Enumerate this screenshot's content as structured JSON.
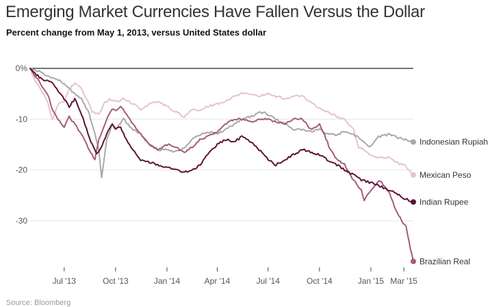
{
  "title": "Emerging Market Currencies Have Fallen Versus the Dollar",
  "subtitle": "Percent change from May 1, 2013, versus United States dollar",
  "source": "Source: Bloomberg",
  "chart_data": {
    "type": "line",
    "title": "Emerging Market Currencies Have Fallen Versus the Dollar",
    "subtitle": "Percent change from May 1, 2013, versus United States dollar",
    "xlabel": "",
    "ylabel": "",
    "x_range": [
      "2013-05-01",
      "2015-03-18"
    ],
    "ylim": [
      -38.5,
      1
    ],
    "y_ticks": [
      {
        "value": 0,
        "label": "0%"
      },
      {
        "value": -10,
        "label": "-10"
      },
      {
        "value": -20,
        "label": "-20"
      },
      {
        "value": -30,
        "label": "-30"
      }
    ],
    "x_ticks": [
      {
        "date": "2013-07-01",
        "label": "Jul '13"
      },
      {
        "date": "2013-10-01",
        "label": "Oct '13"
      },
      {
        "date": "2014-01-01",
        "label": "Jan '14"
      },
      {
        "date": "2014-04-01",
        "label": "Apr '14"
      },
      {
        "date": "2014-07-01",
        "label": "Jul '14"
      },
      {
        "date": "2014-10-01",
        "label": "Oct '14"
      },
      {
        "date": "2015-01-01",
        "label": "Jan '15"
      },
      {
        "date": "2015-03-01",
        "label": "Mar '15"
      }
    ],
    "grid": true,
    "legend": "direct labels at line ends",
    "series": [
      {
        "name": "Mexican Peso",
        "color": "#e5c3cd",
        "points": [
          [
            "2013-05-01",
            0
          ],
          [
            "2013-05-10",
            -2.5
          ],
          [
            "2013-05-20",
            -4
          ],
          [
            "2013-06-01",
            -6.5
          ],
          [
            "2013-06-10",
            -10
          ],
          [
            "2013-06-20",
            -7
          ],
          [
            "2013-07-01",
            -6.5
          ],
          [
            "2013-07-10",
            -4
          ],
          [
            "2013-07-20",
            -3
          ],
          [
            "2013-08-01",
            -4
          ],
          [
            "2013-08-10",
            -6
          ],
          [
            "2013-08-20",
            -8.5
          ],
          [
            "2013-09-01",
            -9
          ],
          [
            "2013-09-10",
            -7
          ],
          [
            "2013-09-20",
            -6
          ],
          [
            "2013-10-01",
            -6.5
          ],
          [
            "2013-10-15",
            -6
          ],
          [
            "2013-11-01",
            -7
          ],
          [
            "2013-11-15",
            -8
          ],
          [
            "2013-12-01",
            -7
          ],
          [
            "2013-12-15",
            -6.5
          ],
          [
            "2014-01-01",
            -7.5
          ],
          [
            "2014-01-15",
            -8.5
          ],
          [
            "2014-02-01",
            -9.5
          ],
          [
            "2014-02-15",
            -8
          ],
          [
            "2014-03-01",
            -8.5
          ],
          [
            "2014-03-15",
            -7.5
          ],
          [
            "2014-04-01",
            -7
          ],
          [
            "2014-04-15",
            -6.5
          ],
          [
            "2014-05-01",
            -5.5
          ],
          [
            "2014-05-15",
            -5
          ],
          [
            "2014-06-01",
            -5
          ],
          [
            "2014-06-15",
            -5.5
          ],
          [
            "2014-07-01",
            -5
          ],
          [
            "2014-07-15",
            -5.5
          ],
          [
            "2014-08-01",
            -6
          ],
          [
            "2014-08-15",
            -5.5
          ],
          [
            "2014-09-01",
            -5.5
          ],
          [
            "2014-09-15",
            -6.5
          ],
          [
            "2014-10-01",
            -8
          ],
          [
            "2014-10-15",
            -8.5
          ],
          [
            "2014-11-01",
            -9.5
          ],
          [
            "2014-11-15",
            -10
          ],
          [
            "2014-12-01",
            -12
          ],
          [
            "2014-12-10",
            -15.5
          ],
          [
            "2014-12-20",
            -16
          ],
          [
            "2015-01-01",
            -17
          ],
          [
            "2015-01-15",
            -17.5
          ],
          [
            "2015-02-01",
            -17.5
          ],
          [
            "2015-02-15",
            -18.5
          ],
          [
            "2015-03-01",
            -19
          ],
          [
            "2015-03-10",
            -20
          ],
          [
            "2015-03-18",
            -21
          ]
        ]
      },
      {
        "name": "Indonesian Rupiah",
        "color": "#a8a8a8",
        "points": [
          [
            "2013-05-01",
            0
          ],
          [
            "2013-05-15",
            -0.5
          ],
          [
            "2013-06-01",
            -1.5
          ],
          [
            "2013-06-15",
            -2
          ],
          [
            "2013-07-01",
            -3
          ],
          [
            "2013-07-15",
            -4.5
          ],
          [
            "2013-08-01",
            -6
          ],
          [
            "2013-08-15",
            -9
          ],
          [
            "2013-08-25",
            -13
          ],
          [
            "2013-09-01",
            -16
          ],
          [
            "2013-09-06",
            -21.5
          ],
          [
            "2013-09-15",
            -14
          ],
          [
            "2013-09-25",
            -11
          ],
          [
            "2013-10-01",
            -12
          ],
          [
            "2013-10-15",
            -10
          ],
          [
            "2013-11-01",
            -12
          ],
          [
            "2013-11-15",
            -13
          ],
          [
            "2013-12-01",
            -15
          ],
          [
            "2013-12-15",
            -16
          ],
          [
            "2014-01-01",
            -16
          ],
          [
            "2014-01-15",
            -16.5
          ],
          [
            "2014-02-01",
            -15.5
          ],
          [
            "2014-02-15",
            -14
          ],
          [
            "2014-03-01",
            -13
          ],
          [
            "2014-03-15",
            -12.5
          ],
          [
            "2014-04-01",
            -13
          ],
          [
            "2014-04-15",
            -12
          ],
          [
            "2014-05-01",
            -11
          ],
          [
            "2014-05-15",
            -10
          ],
          [
            "2014-06-01",
            -9.5
          ],
          [
            "2014-06-15",
            -8.5
          ],
          [
            "2014-07-01",
            -9
          ],
          [
            "2014-07-15",
            -10
          ],
          [
            "2014-08-01",
            -11
          ],
          [
            "2014-08-15",
            -12
          ],
          [
            "2014-09-01",
            -12
          ],
          [
            "2014-09-15",
            -12.5
          ],
          [
            "2014-10-01",
            -12
          ],
          [
            "2014-10-15",
            -13
          ],
          [
            "2014-11-01",
            -13
          ],
          [
            "2014-11-15",
            -12.5
          ],
          [
            "2014-12-01",
            -13
          ],
          [
            "2014-12-15",
            -14
          ],
          [
            "2015-01-01",
            -15.5
          ],
          [
            "2015-01-15",
            -13.5
          ],
          [
            "2015-02-01",
            -13
          ],
          [
            "2015-02-15",
            -13.5
          ],
          [
            "2015-03-01",
            -14
          ],
          [
            "2015-03-10",
            -14.2
          ],
          [
            "2015-03-18",
            -14.5
          ]
        ]
      },
      {
        "name": "Brazilian Real",
        "color": "#a35b77",
        "points": [
          [
            "2013-05-01",
            0
          ],
          [
            "2013-05-10",
            -1.5
          ],
          [
            "2013-05-20",
            -3
          ],
          [
            "2013-06-01",
            -5
          ],
          [
            "2013-06-10",
            -8
          ],
          [
            "2013-06-20",
            -10
          ],
          [
            "2013-07-01",
            -11.5
          ],
          [
            "2013-07-10",
            -9.5
          ],
          [
            "2013-07-20",
            -11
          ],
          [
            "2013-08-01",
            -13
          ],
          [
            "2013-08-10",
            -15
          ],
          [
            "2013-08-20",
            -17
          ],
          [
            "2013-08-25",
            -18
          ],
          [
            "2013-09-01",
            -14
          ],
          [
            "2013-09-15",
            -10
          ],
          [
            "2013-09-25",
            -8
          ],
          [
            "2013-10-01",
            -8.5
          ],
          [
            "2013-10-10",
            -7.5
          ],
          [
            "2013-10-20",
            -9
          ],
          [
            "2013-11-01",
            -11
          ],
          [
            "2013-11-15",
            -13
          ],
          [
            "2013-12-01",
            -15
          ],
          [
            "2013-12-15",
            -16
          ],
          [
            "2014-01-01",
            -15
          ],
          [
            "2014-01-15",
            -15.5
          ],
          [
            "2014-02-01",
            -16.5
          ],
          [
            "2014-02-15",
            -15.5
          ],
          [
            "2014-03-01",
            -14
          ],
          [
            "2014-03-15",
            -13.5
          ],
          [
            "2014-04-01",
            -12.5
          ],
          [
            "2014-04-15",
            -11
          ],
          [
            "2014-05-01",
            -10
          ],
          [
            "2014-05-15",
            -10
          ],
          [
            "2014-06-01",
            -10.5
          ],
          [
            "2014-06-15",
            -10
          ],
          [
            "2014-07-01",
            -10
          ],
          [
            "2014-07-15",
            -10.5
          ],
          [
            "2014-08-01",
            -11
          ],
          [
            "2014-08-15",
            -10
          ],
          [
            "2014-09-01",
            -10
          ],
          [
            "2014-09-15",
            -12
          ],
          [
            "2014-10-01",
            -11
          ],
          [
            "2014-10-10",
            -13
          ],
          [
            "2014-10-20",
            -16
          ],
          [
            "2014-11-01",
            -18
          ],
          [
            "2014-11-15",
            -19
          ],
          [
            "2014-12-01",
            -22
          ],
          [
            "2014-12-15",
            -24
          ],
          [
            "2014-12-20",
            -26
          ],
          [
            "2015-01-01",
            -24
          ],
          [
            "2015-01-15",
            -22
          ],
          [
            "2015-02-01",
            -24
          ],
          [
            "2015-02-15",
            -28
          ],
          [
            "2015-02-25",
            -30
          ],
          [
            "2015-03-05",
            -31
          ],
          [
            "2015-03-10",
            -34
          ],
          [
            "2015-03-18",
            -38
          ]
        ]
      },
      {
        "name": "Indian Rupee",
        "color": "#5e1137",
        "points": [
          [
            "2013-05-01",
            0
          ],
          [
            "2013-05-10",
            -1
          ],
          [
            "2013-05-20",
            -2
          ],
          [
            "2013-06-01",
            -2.5
          ],
          [
            "2013-06-10",
            -3
          ],
          [
            "2013-06-20",
            -4.5
          ],
          [
            "2013-07-01",
            -6
          ],
          [
            "2013-07-10",
            -7.5
          ],
          [
            "2013-07-20",
            -6
          ],
          [
            "2013-08-01",
            -9
          ],
          [
            "2013-08-10",
            -12
          ],
          [
            "2013-08-20",
            -15
          ],
          [
            "2013-08-28",
            -17
          ],
          [
            "2013-09-05",
            -15.5
          ],
          [
            "2013-09-15",
            -13
          ],
          [
            "2013-09-25",
            -11
          ],
          [
            "2013-10-01",
            -12
          ],
          [
            "2013-10-10",
            -11.5
          ],
          [
            "2013-10-20",
            -14
          ],
          [
            "2013-11-01",
            -16
          ],
          [
            "2013-11-15",
            -18
          ],
          [
            "2013-12-01",
            -18.5
          ],
          [
            "2013-12-15",
            -19
          ],
          [
            "2014-01-01",
            -19.5
          ],
          [
            "2014-01-15",
            -20
          ],
          [
            "2014-02-01",
            -20.5
          ],
          [
            "2014-02-15",
            -20
          ],
          [
            "2014-03-01",
            -19
          ],
          [
            "2014-03-15",
            -17
          ],
          [
            "2014-04-01",
            -15
          ],
          [
            "2014-04-15",
            -14
          ],
          [
            "2014-05-01",
            -14.5
          ],
          [
            "2014-05-15",
            -13.5
          ],
          [
            "2014-06-01",
            -14.5
          ],
          [
            "2014-06-15",
            -16
          ],
          [
            "2014-07-01",
            -18
          ],
          [
            "2014-07-15",
            -19
          ],
          [
            "2014-08-01",
            -18
          ],
          [
            "2014-08-15",
            -17
          ],
          [
            "2014-09-01",
            -16
          ],
          [
            "2014-09-15",
            -16.5
          ],
          [
            "2014-10-01",
            -17
          ],
          [
            "2014-10-15",
            -18
          ],
          [
            "2014-11-01",
            -19
          ],
          [
            "2014-11-15",
            -20
          ],
          [
            "2014-12-01",
            -21
          ],
          [
            "2014-12-15",
            -22
          ],
          [
            "2015-01-01",
            -22.5
          ],
          [
            "2015-01-15",
            -23
          ],
          [
            "2015-02-01",
            -24
          ],
          [
            "2015-02-15",
            -24.5
          ],
          [
            "2015-03-01",
            -25.5
          ],
          [
            "2015-03-10",
            -26
          ],
          [
            "2015-03-18",
            -26.3
          ]
        ]
      }
    ]
  }
}
